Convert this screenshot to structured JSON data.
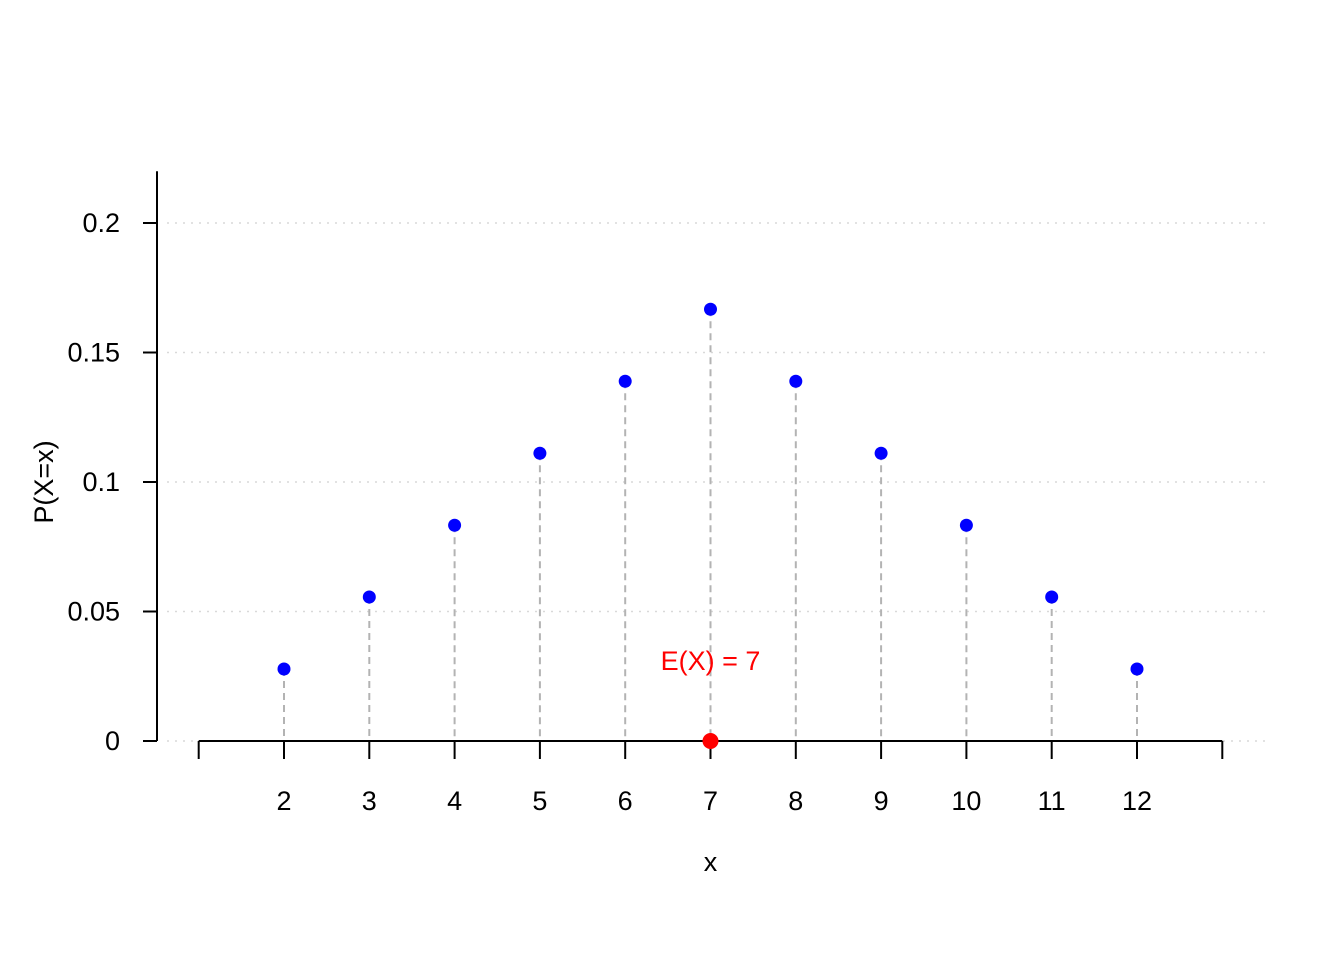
{
  "chart_data": {
    "type": "scatter",
    "title": "",
    "xlabel": "x",
    "ylabel": "P(X=x)",
    "x": [
      2,
      3,
      4,
      5,
      6,
      7,
      8,
      9,
      10,
      11,
      12
    ],
    "y": [
      0.0278,
      0.0556,
      0.0833,
      0.1111,
      0.1389,
      0.1667,
      0.1389,
      0.1111,
      0.0833,
      0.0556,
      0.0278
    ],
    "xticks": [
      2,
      3,
      4,
      5,
      6,
      7,
      8,
      9,
      10,
      11,
      12
    ],
    "yticks": [
      0,
      0.05,
      0.1,
      0.15,
      0.2
    ],
    "ytick_labels": [
      "0",
      "0.05",
      "0.1",
      "0.15",
      "0.2"
    ],
    "xlim": [
      1,
      13
    ],
    "ylim": [
      0,
      0.22
    ],
    "grid": "horizontal-dotted",
    "stems": "dashed",
    "point_color": "#0000ff",
    "stem_color": "#b3b3b3",
    "annotation": {
      "text": "E(X) = 7",
      "x": 7,
      "y": 0.0309,
      "marker_y": 0,
      "color": "#ff0000"
    }
  }
}
